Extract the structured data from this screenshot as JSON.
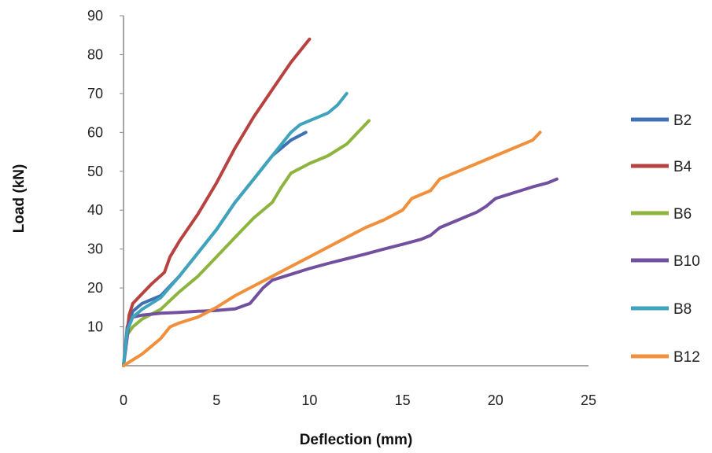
{
  "chart_data": {
    "type": "line",
    "title": "",
    "xlabel": "Deflection (mm)",
    "ylabel": "Load  (kN)",
    "xlim": [
      0,
      25
    ],
    "ylim": [
      0,
      90
    ],
    "xticks": [
      "0",
      "5",
      "10",
      "15",
      "20",
      "25"
    ],
    "yticks": [
      "10",
      "20",
      "30",
      "40",
      "50",
      "60",
      "70",
      "80",
      "90"
    ],
    "grid": false,
    "legend": "right",
    "series": [
      {
        "name": "B2",
        "color": "#3f6fb5",
        "points": [
          [
            0,
            0
          ],
          [
            0.2,
            10
          ],
          [
            0.5,
            14
          ],
          [
            1,
            16
          ],
          [
            2,
            18
          ],
          [
            3,
            23
          ],
          [
            4,
            29
          ],
          [
            5,
            35
          ],
          [
            6,
            42
          ],
          [
            7,
            48
          ],
          [
            8,
            54
          ],
          [
            9,
            58
          ],
          [
            9.8,
            60
          ]
        ]
      },
      {
        "name": "B4",
        "color": "#b84240",
        "points": [
          [
            0,
            0
          ],
          [
            0.3,
            13
          ],
          [
            0.5,
            16
          ],
          [
            1,
            18.5
          ],
          [
            1.5,
            21
          ],
          [
            2.2,
            24
          ],
          [
            2.5,
            28
          ],
          [
            3,
            32
          ],
          [
            4,
            39
          ],
          [
            5,
            47
          ],
          [
            6,
            56
          ],
          [
            7,
            64
          ],
          [
            8,
            71
          ],
          [
            9,
            78
          ],
          [
            10,
            84
          ]
        ]
      },
      {
        "name": "B6",
        "color": "#8cb43e",
        "points": [
          [
            0,
            0
          ],
          [
            0.2,
            8
          ],
          [
            0.5,
            10
          ],
          [
            1,
            12
          ],
          [
            2,
            14.5
          ],
          [
            3,
            19
          ],
          [
            4,
            23
          ],
          [
            5,
            28
          ],
          [
            6,
            33
          ],
          [
            7,
            38
          ],
          [
            8,
            42
          ],
          [
            8.5,
            46
          ],
          [
            9,
            49.5
          ],
          [
            10,
            52
          ],
          [
            11,
            54
          ],
          [
            12,
            57
          ],
          [
            12.6,
            60
          ],
          [
            13.2,
            63
          ]
        ]
      },
      {
        "name": "B10",
        "color": "#7150a0",
        "points": [
          [
            0,
            0
          ],
          [
            0.3,
            11
          ],
          [
            0.5,
            12.5
          ],
          [
            1,
            13
          ],
          [
            2,
            13.5
          ],
          [
            3,
            13.7
          ],
          [
            4,
            14
          ],
          [
            5,
            14.2
          ],
          [
            6,
            14.6
          ],
          [
            6.8,
            16
          ],
          [
            7.5,
            20
          ],
          [
            8,
            22
          ],
          [
            9,
            23.5
          ],
          [
            10,
            25
          ],
          [
            11,
            26.3
          ],
          [
            12,
            27.5
          ],
          [
            13,
            28.7
          ],
          [
            14,
            30
          ],
          [
            15,
            31.2
          ],
          [
            16,
            32.5
          ],
          [
            16.5,
            33.5
          ],
          [
            17,
            35.5
          ],
          [
            18,
            37.5
          ],
          [
            19,
            39.5
          ],
          [
            19.5,
            41
          ],
          [
            20,
            43
          ],
          [
            21,
            44.5
          ],
          [
            22,
            46
          ],
          [
            22.8,
            47
          ],
          [
            23.3,
            48
          ]
        ]
      },
      {
        "name": "B8",
        "color": "#3ea3bb",
        "points": [
          [
            0,
            0
          ],
          [
            0.2,
            9
          ],
          [
            0.5,
            12.5
          ],
          [
            1,
            14.5
          ],
          [
            2,
            17.5
          ],
          [
            3,
            23
          ],
          [
            4,
            29
          ],
          [
            5,
            35
          ],
          [
            6,
            42
          ],
          [
            7,
            48
          ],
          [
            8,
            54
          ],
          [
            9,
            60
          ],
          [
            9.5,
            62
          ],
          [
            10,
            63
          ],
          [
            11,
            65
          ],
          [
            11.5,
            67
          ],
          [
            12,
            70
          ]
        ]
      },
      {
        "name": "B12",
        "color": "#f0903c",
        "points": [
          [
            0,
            0
          ],
          [
            1,
            3
          ],
          [
            1.5,
            5
          ],
          [
            2,
            7
          ],
          [
            2.5,
            10
          ],
          [
            3,
            11
          ],
          [
            4,
            12.5
          ],
          [
            5,
            15
          ],
          [
            6,
            18
          ],
          [
            7,
            20.5
          ],
          [
            8,
            23
          ],
          [
            9,
            25.5
          ],
          [
            10,
            28
          ],
          [
            11,
            30.5
          ],
          [
            12,
            33
          ],
          [
            13,
            35.5
          ],
          [
            14,
            37.5
          ],
          [
            15,
            40
          ],
          [
            15.5,
            43
          ],
          [
            16,
            44
          ],
          [
            16.5,
            45
          ],
          [
            17,
            48
          ],
          [
            18,
            50
          ],
          [
            19,
            52
          ],
          [
            20,
            54
          ],
          [
            21,
            56
          ],
          [
            22,
            58
          ],
          [
            22.4,
            60
          ]
        ]
      }
    ]
  }
}
